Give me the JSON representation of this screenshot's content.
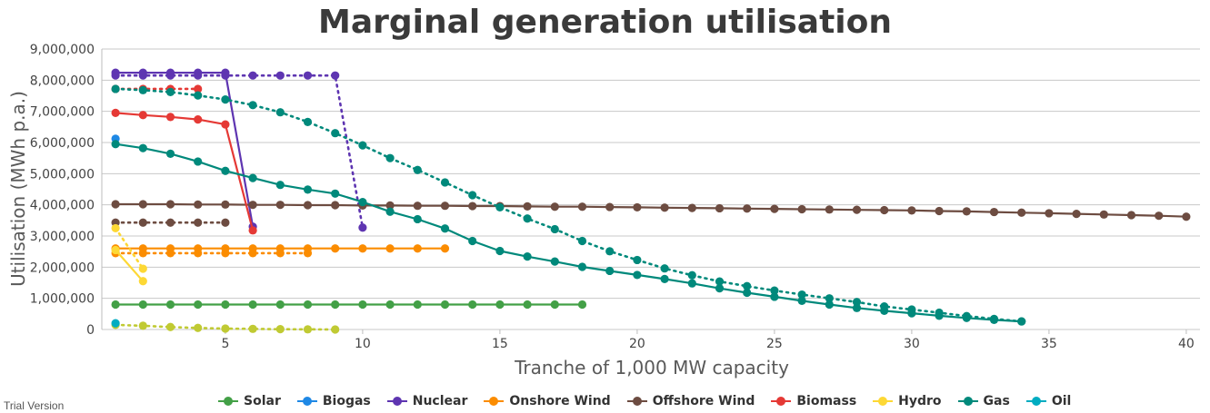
{
  "watermark": "Trial Version",
  "chart_data": {
    "type": "line",
    "title": "Marginal generation utilisation",
    "xlabel": "Tranche of 1,000 MW capacity",
    "ylabel": "Utilisation (MWh p.a.)",
    "xlim": [
      0.5,
      40.5
    ],
    "ylim": [
      0,
      9000000
    ],
    "x_ticks": [
      5,
      10,
      15,
      20,
      25,
      30,
      35,
      40
    ],
    "y_ticks": [
      0,
      1000000,
      2000000,
      3000000,
      4000000,
      5000000,
      6000000,
      7000000,
      8000000,
      9000000
    ],
    "y_tick_labels": [
      "0",
      "1,000,000",
      "2,000,000",
      "3,000,000",
      "4,000,000",
      "5,000,000",
      "6,000,000",
      "7,000,000",
      "8,000,000",
      "9,000,000"
    ],
    "x_tick_labels": [
      "5",
      "10",
      "15",
      "20",
      "25",
      "30",
      "35",
      "40"
    ],
    "grid": true,
    "legend_position": "bottom",
    "legend": [
      {
        "name": "Solar",
        "color": "#43a047"
      },
      {
        "name": "Biogas",
        "color": "#1e88e5"
      },
      {
        "name": "Nuclear",
        "color": "#5e35b1"
      },
      {
        "name": "Onshore Wind",
        "color": "#fb8c00"
      },
      {
        "name": "Offshore Wind",
        "color": "#6d4c41"
      },
      {
        "name": "Biomass",
        "color": "#e53935"
      },
      {
        "name": "Hydro",
        "color": "#fdd835"
      },
      {
        "name": "Gas",
        "color": "#00897b"
      },
      {
        "name": "Oil",
        "color": "#00acc1"
      }
    ],
    "series": [
      {
        "name": "Solar",
        "style": "solid",
        "color": "#43a047",
        "x": [
          1,
          2,
          3,
          4,
          5,
          6,
          7,
          8,
          9,
          10,
          11,
          12,
          13,
          14,
          15,
          16,
          17,
          18
        ],
        "values": [
          800000,
          800000,
          800000,
          800000,
          800000,
          800000,
          800000,
          800000,
          800000,
          800000,
          800000,
          800000,
          800000,
          800000,
          800000,
          800000,
          800000,
          800000
        ]
      },
      {
        "name": "Solar (dotted)",
        "style": "dotted",
        "color": "#c0ca33",
        "x": [
          1,
          2,
          3,
          4,
          5,
          6,
          7,
          8,
          9
        ],
        "values": [
          150000,
          120000,
          80000,
          50000,
          30000,
          20000,
          10000,
          5000,
          0
        ]
      },
      {
        "name": "Biogas",
        "style": "solid",
        "color": "#1e88e5",
        "x": [
          1
        ],
        "values": [
          6120000
        ]
      },
      {
        "name": "Nuclear",
        "style": "solid",
        "color": "#5e35b1",
        "x": [
          1,
          2,
          3,
          4,
          5,
          6
        ],
        "values": [
          8240000,
          8240000,
          8240000,
          8240000,
          8240000,
          3300000
        ]
      },
      {
        "name": "Nuclear (dotted)",
        "style": "dotted",
        "color": "#5e35b1",
        "x": [
          1,
          2,
          3,
          4,
          5,
          6,
          7,
          8,
          9,
          10
        ],
        "values": [
          8150000,
          8150000,
          8150000,
          8150000,
          8150000,
          8150000,
          8150000,
          8150000,
          8150000,
          3270000
        ]
      },
      {
        "name": "Onshore Wind",
        "style": "solid",
        "color": "#fb8c00",
        "x": [
          1,
          2,
          3,
          4,
          5,
          6,
          7,
          8,
          9,
          10,
          11,
          12,
          13
        ],
        "values": [
          2600000,
          2600000,
          2600000,
          2600000,
          2600000,
          2600000,
          2600000,
          2600000,
          2600000,
          2600000,
          2600000,
          2600000,
          2600000
        ]
      },
      {
        "name": "Onshore Wind (dotted)",
        "style": "dotted",
        "color": "#fb8c00",
        "x": [
          1,
          2,
          3,
          4,
          5,
          6,
          7,
          8
        ],
        "values": [
          2450000,
          2450000,
          2450000,
          2450000,
          2450000,
          2450000,
          2450000,
          2450000
        ]
      },
      {
        "name": "Offshore Wind",
        "style": "solid",
        "color": "#6d4c41",
        "x": [
          1,
          2,
          3,
          4,
          5,
          6,
          7,
          8,
          9,
          10,
          11,
          12,
          13,
          14,
          15,
          16,
          17,
          18,
          19,
          20,
          21,
          22,
          23,
          24,
          25,
          26,
          27,
          28,
          29,
          30,
          31,
          32,
          33,
          34,
          35,
          36,
          37,
          38,
          39,
          40
        ],
        "values": [
          4020000,
          4020000,
          4020000,
          4010000,
          4010000,
          4000000,
          4000000,
          3990000,
          3990000,
          3980000,
          3980000,
          3970000,
          3970000,
          3960000,
          3960000,
          3950000,
          3940000,
          3940000,
          3930000,
          3920000,
          3910000,
          3900000,
          3890000,
          3880000,
          3870000,
          3860000,
          3850000,
          3840000,
          3830000,
          3820000,
          3800000,
          3790000,
          3770000,
          3750000,
          3730000,
          3710000,
          3690000,
          3670000,
          3650000,
          3620000
        ]
      },
      {
        "name": "Offshore Wind (dotted)",
        "style": "dotted",
        "color": "#6d4c41",
        "x": [
          1,
          2,
          3,
          4,
          5
        ],
        "values": [
          3430000,
          3430000,
          3430000,
          3430000,
          3430000
        ]
      },
      {
        "name": "Biomass",
        "style": "solid",
        "color": "#e53935",
        "x": [
          1,
          2,
          3,
          4,
          5,
          6
        ],
        "values": [
          6950000,
          6880000,
          6820000,
          6740000,
          6580000,
          3180000
        ]
      },
      {
        "name": "Biomass (dotted)",
        "style": "dotted",
        "color": "#e53935",
        "x": [
          1,
          2,
          3,
          4
        ],
        "values": [
          7720000,
          7720000,
          7720000,
          7720000
        ]
      },
      {
        "name": "Hydro",
        "style": "solid",
        "color": "#fdd835",
        "x": [
          1,
          2
        ],
        "values": [
          2550000,
          1550000
        ]
      },
      {
        "name": "Hydro (dotted)",
        "style": "dotted",
        "color": "#fdd835",
        "x": [
          1,
          2
        ],
        "values": [
          3250000,
          1950000
        ]
      },
      {
        "name": "Gas",
        "style": "solid",
        "color": "#00897b",
        "x": [
          1,
          2,
          3,
          4,
          5,
          6,
          7,
          8,
          9,
          10,
          11,
          12,
          13,
          14,
          15,
          16,
          17,
          18,
          19,
          20,
          21,
          22,
          23,
          24,
          25,
          26,
          27,
          28,
          29,
          30,
          31,
          32,
          33,
          34
        ],
        "values": [
          5950000,
          5820000,
          5640000,
          5390000,
          5090000,
          4860000,
          4640000,
          4490000,
          4360000,
          4090000,
          3780000,
          3540000,
          3240000,
          2840000,
          2520000,
          2340000,
          2180000,
          2010000,
          1880000,
          1750000,
          1620000,
          1480000,
          1320000,
          1180000,
          1050000,
          920000,
          800000,
          690000,
          600000,
          520000,
          440000,
          370000,
          310000,
          260000
        ]
      },
      {
        "name": "Gas (dotted)",
        "style": "dotted",
        "color": "#00897b",
        "x": [
          1,
          2,
          3,
          4,
          5,
          6,
          7,
          8,
          9,
          10,
          11,
          12,
          13,
          14,
          15,
          16,
          17,
          18,
          19,
          20,
          21,
          22,
          23,
          24,
          25,
          26,
          27,
          28,
          29,
          30,
          31,
          32,
          33,
          34
        ],
        "values": [
          7720000,
          7680000,
          7620000,
          7510000,
          7380000,
          7200000,
          6970000,
          6660000,
          6300000,
          5910000,
          5500000,
          5120000,
          4720000,
          4310000,
          3920000,
          3560000,
          3220000,
          2840000,
          2510000,
          2230000,
          1960000,
          1740000,
          1540000,
          1390000,
          1250000,
          1120000,
          1000000,
          880000,
          740000,
          640000,
          540000,
          430000,
          340000,
          260000
        ]
      },
      {
        "name": "Oil",
        "style": "solid",
        "color": "#00acc1",
        "x": [
          1
        ],
        "values": [
          200000
        ]
      }
    ]
  }
}
